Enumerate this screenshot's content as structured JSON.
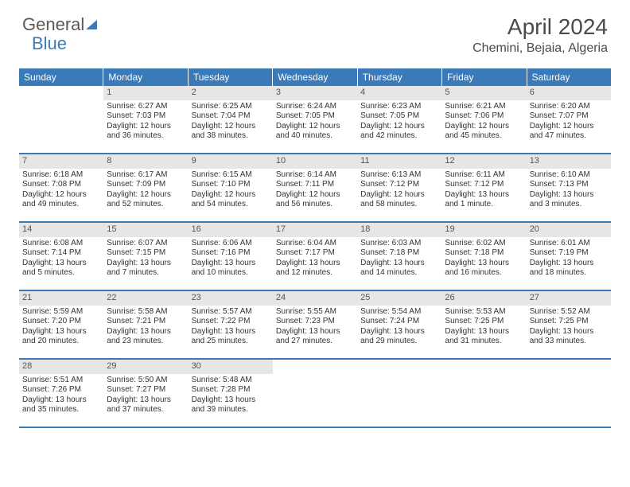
{
  "logo": {
    "part1": "General",
    "part2": "Blue"
  },
  "title": "April 2024",
  "location": "Chemini, Bejaia, Algeria",
  "day_headers": [
    "Sunday",
    "Monday",
    "Tuesday",
    "Wednesday",
    "Thursday",
    "Friday",
    "Saturday"
  ],
  "colors": {
    "header_bg": "#3a7ab8",
    "header_text": "#ffffff",
    "daynum_bg": "#e6e6e6",
    "border": "#3a7ab8",
    "text": "#333333"
  },
  "weeks": [
    [
      {
        "blank": true
      },
      {
        "num": "1",
        "l1": "Sunrise: 6:27 AM",
        "l2": "Sunset: 7:03 PM",
        "l3": "Daylight: 12 hours",
        "l4": "and 36 minutes."
      },
      {
        "num": "2",
        "l1": "Sunrise: 6:25 AM",
        "l2": "Sunset: 7:04 PM",
        "l3": "Daylight: 12 hours",
        "l4": "and 38 minutes."
      },
      {
        "num": "3",
        "l1": "Sunrise: 6:24 AM",
        "l2": "Sunset: 7:05 PM",
        "l3": "Daylight: 12 hours",
        "l4": "and 40 minutes."
      },
      {
        "num": "4",
        "l1": "Sunrise: 6:23 AM",
        "l2": "Sunset: 7:05 PM",
        "l3": "Daylight: 12 hours",
        "l4": "and 42 minutes."
      },
      {
        "num": "5",
        "l1": "Sunrise: 6:21 AM",
        "l2": "Sunset: 7:06 PM",
        "l3": "Daylight: 12 hours",
        "l4": "and 45 minutes."
      },
      {
        "num": "6",
        "l1": "Sunrise: 6:20 AM",
        "l2": "Sunset: 7:07 PM",
        "l3": "Daylight: 12 hours",
        "l4": "and 47 minutes."
      }
    ],
    [
      {
        "num": "7",
        "l1": "Sunrise: 6:18 AM",
        "l2": "Sunset: 7:08 PM",
        "l3": "Daylight: 12 hours",
        "l4": "and 49 minutes."
      },
      {
        "num": "8",
        "l1": "Sunrise: 6:17 AM",
        "l2": "Sunset: 7:09 PM",
        "l3": "Daylight: 12 hours",
        "l4": "and 52 minutes."
      },
      {
        "num": "9",
        "l1": "Sunrise: 6:15 AM",
        "l2": "Sunset: 7:10 PM",
        "l3": "Daylight: 12 hours",
        "l4": "and 54 minutes."
      },
      {
        "num": "10",
        "l1": "Sunrise: 6:14 AM",
        "l2": "Sunset: 7:11 PM",
        "l3": "Daylight: 12 hours",
        "l4": "and 56 minutes."
      },
      {
        "num": "11",
        "l1": "Sunrise: 6:13 AM",
        "l2": "Sunset: 7:12 PM",
        "l3": "Daylight: 12 hours",
        "l4": "and 58 minutes."
      },
      {
        "num": "12",
        "l1": "Sunrise: 6:11 AM",
        "l2": "Sunset: 7:12 PM",
        "l3": "Daylight: 13 hours",
        "l4": "and 1 minute."
      },
      {
        "num": "13",
        "l1": "Sunrise: 6:10 AM",
        "l2": "Sunset: 7:13 PM",
        "l3": "Daylight: 13 hours",
        "l4": "and 3 minutes."
      }
    ],
    [
      {
        "num": "14",
        "l1": "Sunrise: 6:08 AM",
        "l2": "Sunset: 7:14 PM",
        "l3": "Daylight: 13 hours",
        "l4": "and 5 minutes."
      },
      {
        "num": "15",
        "l1": "Sunrise: 6:07 AM",
        "l2": "Sunset: 7:15 PM",
        "l3": "Daylight: 13 hours",
        "l4": "and 7 minutes."
      },
      {
        "num": "16",
        "l1": "Sunrise: 6:06 AM",
        "l2": "Sunset: 7:16 PM",
        "l3": "Daylight: 13 hours",
        "l4": "and 10 minutes."
      },
      {
        "num": "17",
        "l1": "Sunrise: 6:04 AM",
        "l2": "Sunset: 7:17 PM",
        "l3": "Daylight: 13 hours",
        "l4": "and 12 minutes."
      },
      {
        "num": "18",
        "l1": "Sunrise: 6:03 AM",
        "l2": "Sunset: 7:18 PM",
        "l3": "Daylight: 13 hours",
        "l4": "and 14 minutes."
      },
      {
        "num": "19",
        "l1": "Sunrise: 6:02 AM",
        "l2": "Sunset: 7:18 PM",
        "l3": "Daylight: 13 hours",
        "l4": "and 16 minutes."
      },
      {
        "num": "20",
        "l1": "Sunrise: 6:01 AM",
        "l2": "Sunset: 7:19 PM",
        "l3": "Daylight: 13 hours",
        "l4": "and 18 minutes."
      }
    ],
    [
      {
        "num": "21",
        "l1": "Sunrise: 5:59 AM",
        "l2": "Sunset: 7:20 PM",
        "l3": "Daylight: 13 hours",
        "l4": "and 20 minutes."
      },
      {
        "num": "22",
        "l1": "Sunrise: 5:58 AM",
        "l2": "Sunset: 7:21 PM",
        "l3": "Daylight: 13 hours",
        "l4": "and 23 minutes."
      },
      {
        "num": "23",
        "l1": "Sunrise: 5:57 AM",
        "l2": "Sunset: 7:22 PM",
        "l3": "Daylight: 13 hours",
        "l4": "and 25 minutes."
      },
      {
        "num": "24",
        "l1": "Sunrise: 5:55 AM",
        "l2": "Sunset: 7:23 PM",
        "l3": "Daylight: 13 hours",
        "l4": "and 27 minutes."
      },
      {
        "num": "25",
        "l1": "Sunrise: 5:54 AM",
        "l2": "Sunset: 7:24 PM",
        "l3": "Daylight: 13 hours",
        "l4": "and 29 minutes."
      },
      {
        "num": "26",
        "l1": "Sunrise: 5:53 AM",
        "l2": "Sunset: 7:25 PM",
        "l3": "Daylight: 13 hours",
        "l4": "and 31 minutes."
      },
      {
        "num": "27",
        "l1": "Sunrise: 5:52 AM",
        "l2": "Sunset: 7:25 PM",
        "l3": "Daylight: 13 hours",
        "l4": "and 33 minutes."
      }
    ],
    [
      {
        "num": "28",
        "l1": "Sunrise: 5:51 AM",
        "l2": "Sunset: 7:26 PM",
        "l3": "Daylight: 13 hours",
        "l4": "and 35 minutes."
      },
      {
        "num": "29",
        "l1": "Sunrise: 5:50 AM",
        "l2": "Sunset: 7:27 PM",
        "l3": "Daylight: 13 hours",
        "l4": "and 37 minutes."
      },
      {
        "num": "30",
        "l1": "Sunrise: 5:48 AM",
        "l2": "Sunset: 7:28 PM",
        "l3": "Daylight: 13 hours",
        "l4": "and 39 minutes."
      },
      {
        "blank": true
      },
      {
        "blank": true
      },
      {
        "blank": true
      },
      {
        "blank": true
      }
    ]
  ]
}
